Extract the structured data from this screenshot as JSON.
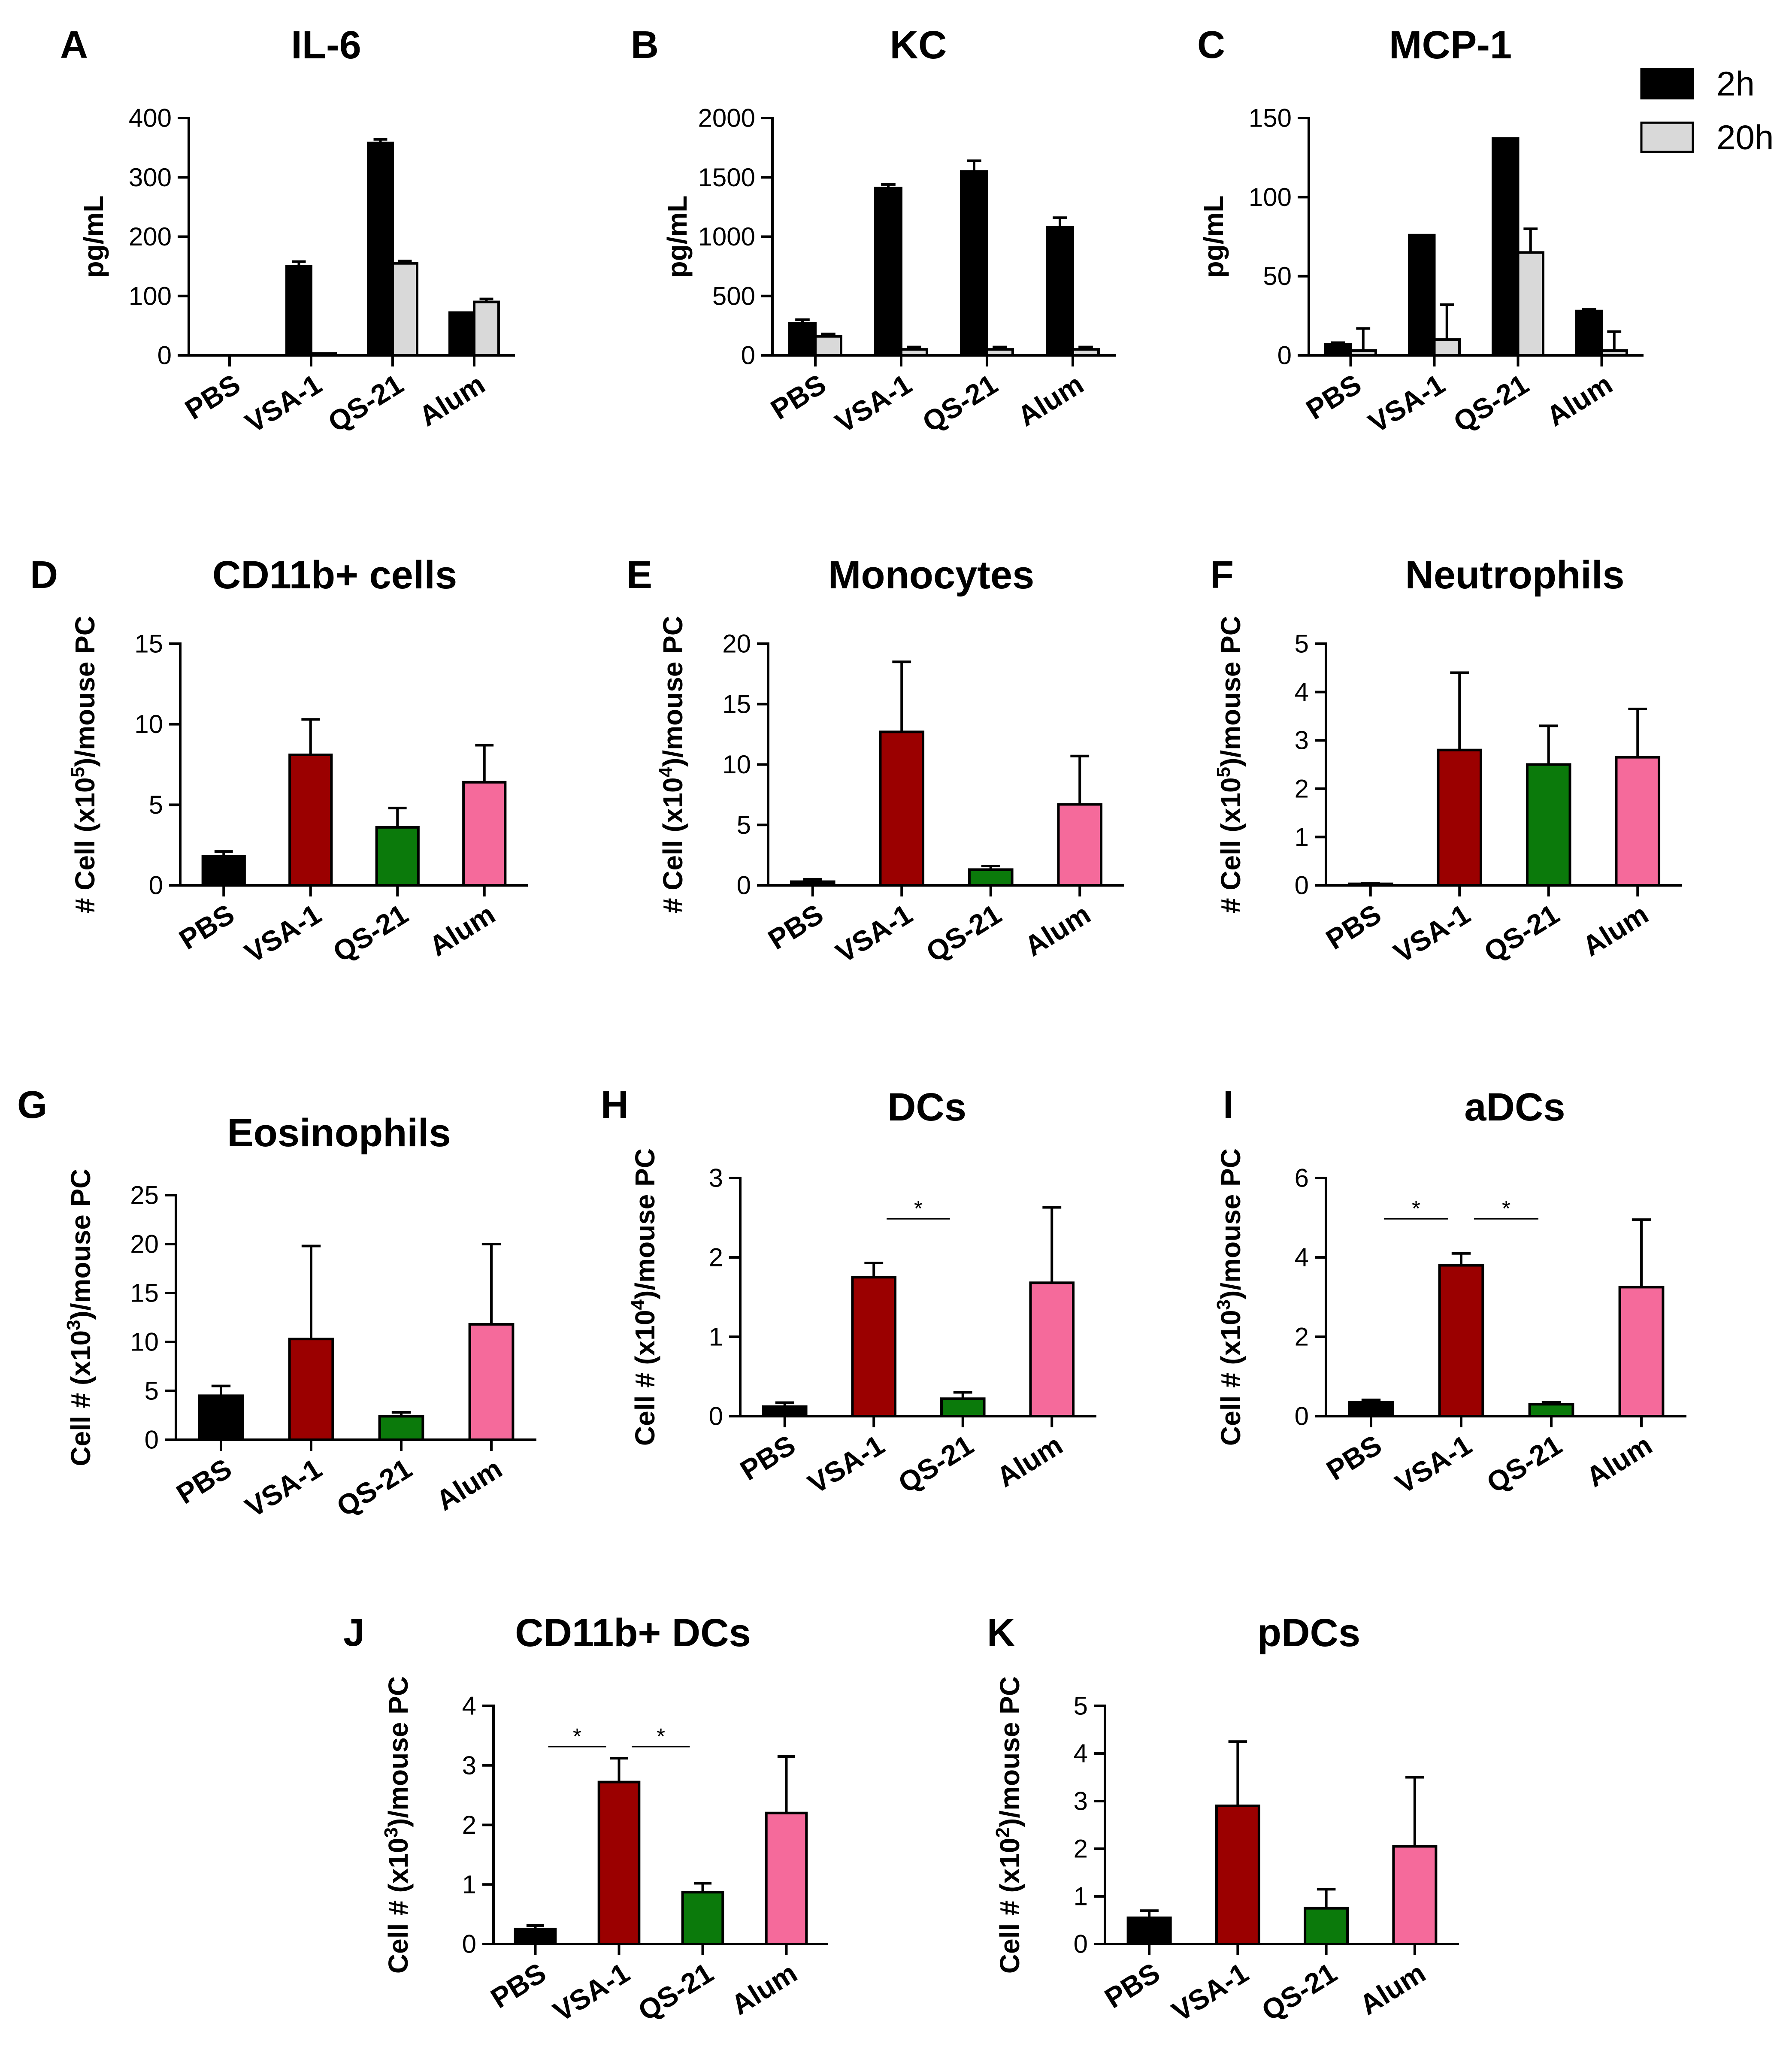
{
  "chart_data": [
    {
      "id": "A",
      "type": "bar",
      "title": "IL-6",
      "ylabel": "pg/mL",
      "ylim": [
        0,
        400
      ],
      "yticks": [
        0,
        100,
        200,
        300,
        400
      ],
      "categories": [
        "PBS",
        "VSA-1",
        "QS-21",
        "Alum"
      ],
      "series": [
        {
          "name": "2h",
          "values": [
            0,
            150,
            358,
            72
          ],
          "errors": [
            0,
            8,
            6,
            0
          ]
        },
        {
          "name": "20h",
          "values": [
            0,
            3,
            155,
            90
          ],
          "errors": [
            0,
            0,
            4,
            5
          ]
        }
      ],
      "legend": {
        "position": "top-right",
        "entries": [
          "2h",
          "20h"
        ]
      }
    },
    {
      "id": "B",
      "type": "bar",
      "title": "KC",
      "ylabel": "pg/mL",
      "ylim": [
        0,
        2000
      ],
      "yticks": [
        0,
        500,
        1000,
        1500,
        2000
      ],
      "categories": [
        "PBS",
        "VSA-1",
        "QS-21",
        "Alum"
      ],
      "series": [
        {
          "name": "2h",
          "values": [
            270,
            1410,
            1550,
            1080
          ],
          "errors": [
            30,
            30,
            90,
            80
          ]
        },
        {
          "name": "20h",
          "values": [
            160,
            50,
            50,
            50
          ],
          "errors": [
            20,
            20,
            20,
            20
          ]
        }
      ]
    },
    {
      "id": "C",
      "type": "bar",
      "title": "MCP-1",
      "ylabel": "pg/mL",
      "ylim": [
        0,
        150
      ],
      "yticks": [
        0,
        50,
        100,
        150
      ],
      "categories": [
        "PBS",
        "VSA-1",
        "QS-21",
        "Alum"
      ],
      "series": [
        {
          "name": "2h",
          "values": [
            7,
            76,
            137,
            28
          ],
          "errors": [
            1,
            0,
            0,
            1
          ]
        },
        {
          "name": "20h",
          "values": [
            3,
            10,
            65,
            3
          ],
          "errors": [
            14,
            22,
            15,
            12
          ]
        }
      ]
    },
    {
      "id": "D",
      "type": "bar",
      "title": "CD11b+ cells",
      "ylabel": "# Cell (x10⁵)/mouse PC",
      "ylim": [
        0,
        15
      ],
      "yticks": [
        0,
        5,
        10,
        15
      ],
      "categories": [
        "PBS",
        "VSA-1",
        "QS-21",
        "Alum"
      ],
      "values": [
        1.8,
        8.1,
        3.6,
        6.4
      ],
      "errors": [
        0.3,
        2.2,
        1.2,
        2.3
      ]
    },
    {
      "id": "E",
      "type": "bar",
      "title": "Monocytes",
      "ylabel": "# Cell (x10⁴)/mouse PC",
      "ylim": [
        0,
        20
      ],
      "yticks": [
        0,
        5,
        10,
        15,
        20
      ],
      "categories": [
        "PBS",
        "VSA-1",
        "QS-21",
        "Alum"
      ],
      "values": [
        0.3,
        12.7,
        1.3,
        6.7
      ],
      "errors": [
        0.2,
        5.8,
        0.3,
        4.0
      ]
    },
    {
      "id": "F",
      "type": "bar",
      "title": "Neutrophils",
      "ylabel": "# Cell (x10⁵)/mouse PC",
      "ylim": [
        0,
        5
      ],
      "yticks": [
        0,
        1,
        2,
        3,
        4,
        5
      ],
      "categories": [
        "PBS",
        "VSA-1",
        "QS-21",
        "Alum"
      ],
      "values": [
        0.03,
        2.8,
        2.5,
        2.65
      ],
      "errors": [
        0.01,
        1.6,
        0.8,
        1.0
      ]
    },
    {
      "id": "G",
      "type": "bar",
      "title": "Eosinophils",
      "ylabel": "Cell # (x10³)/mouse PC",
      "ylim": [
        0,
        25
      ],
      "yticks": [
        0,
        5,
        10,
        15,
        20,
        25
      ],
      "categories": [
        "PBS",
        "VSA-1",
        "QS-21",
        "Alum"
      ],
      "values": [
        4.5,
        10.3,
        2.4,
        11.8
      ],
      "errors": [
        1.0,
        9.5,
        0.4,
        8.2
      ]
    },
    {
      "id": "H",
      "type": "bar",
      "title": "DCs",
      "ylabel": "Cell # (x10⁴)/mouse PC",
      "ylim": [
        0,
        3
      ],
      "yticks": [
        0,
        1,
        2,
        3
      ],
      "categories": [
        "PBS",
        "VSA-1",
        "QS-21",
        "Alum"
      ],
      "values": [
        0.12,
        1.75,
        0.22,
        1.68
      ],
      "errors": [
        0.05,
        0.18,
        0.08,
        0.95
      ],
      "significance": [
        {
          "from": 1,
          "to": 2,
          "label": "*"
        }
      ]
    },
    {
      "id": "I",
      "type": "bar",
      "title": "aDCs",
      "ylabel": "Cell # (x10³)/mouse PC",
      "ylim": [
        0,
        6
      ],
      "yticks": [
        0,
        2,
        4,
        6
      ],
      "categories": [
        "PBS",
        "VSA-1",
        "QS-21",
        "Alum"
      ],
      "values": [
        0.35,
        3.8,
        0.3,
        3.25
      ],
      "errors": [
        0.06,
        0.3,
        0.05,
        1.7
      ],
      "significance": [
        {
          "from": 0,
          "to": 1,
          "label": "*"
        },
        {
          "from": 1,
          "to": 2,
          "label": "*"
        }
      ]
    },
    {
      "id": "J",
      "type": "bar",
      "title": "CD11b+ DCs",
      "ylabel": "Cell # (x10³)/mouse PC",
      "ylim": [
        0,
        4
      ],
      "yticks": [
        0,
        1,
        2,
        3,
        4
      ],
      "categories": [
        "PBS",
        "VSA-1",
        "QS-21",
        "Alum"
      ],
      "values": [
        0.25,
        2.72,
        0.87,
        2.2
      ],
      "errors": [
        0.06,
        0.4,
        0.15,
        0.95
      ],
      "significance": [
        {
          "from": 0,
          "to": 1,
          "label": "*"
        },
        {
          "from": 1,
          "to": 2,
          "label": "*"
        }
      ]
    },
    {
      "id": "K",
      "type": "bar",
      "title": "pDCs",
      "ylabel": "Cell # (x10²)/mouse PC",
      "ylim": [
        0,
        5
      ],
      "yticks": [
        0,
        1,
        2,
        3,
        4,
        5
      ],
      "categories": [
        "PBS",
        "VSA-1",
        "QS-21",
        "Alum"
      ],
      "values": [
        0.55,
        2.9,
        0.75,
        2.05
      ],
      "errors": [
        0.15,
        1.35,
        0.4,
        1.45
      ]
    }
  ],
  "colors": {
    "2h": "#000000",
    "20h": "#d9d9d9",
    "PBS": "#000000",
    "VSA-1": "#9b0000",
    "QS-21": "#0b7a0b",
    "Alum": "#f56a9b"
  }
}
